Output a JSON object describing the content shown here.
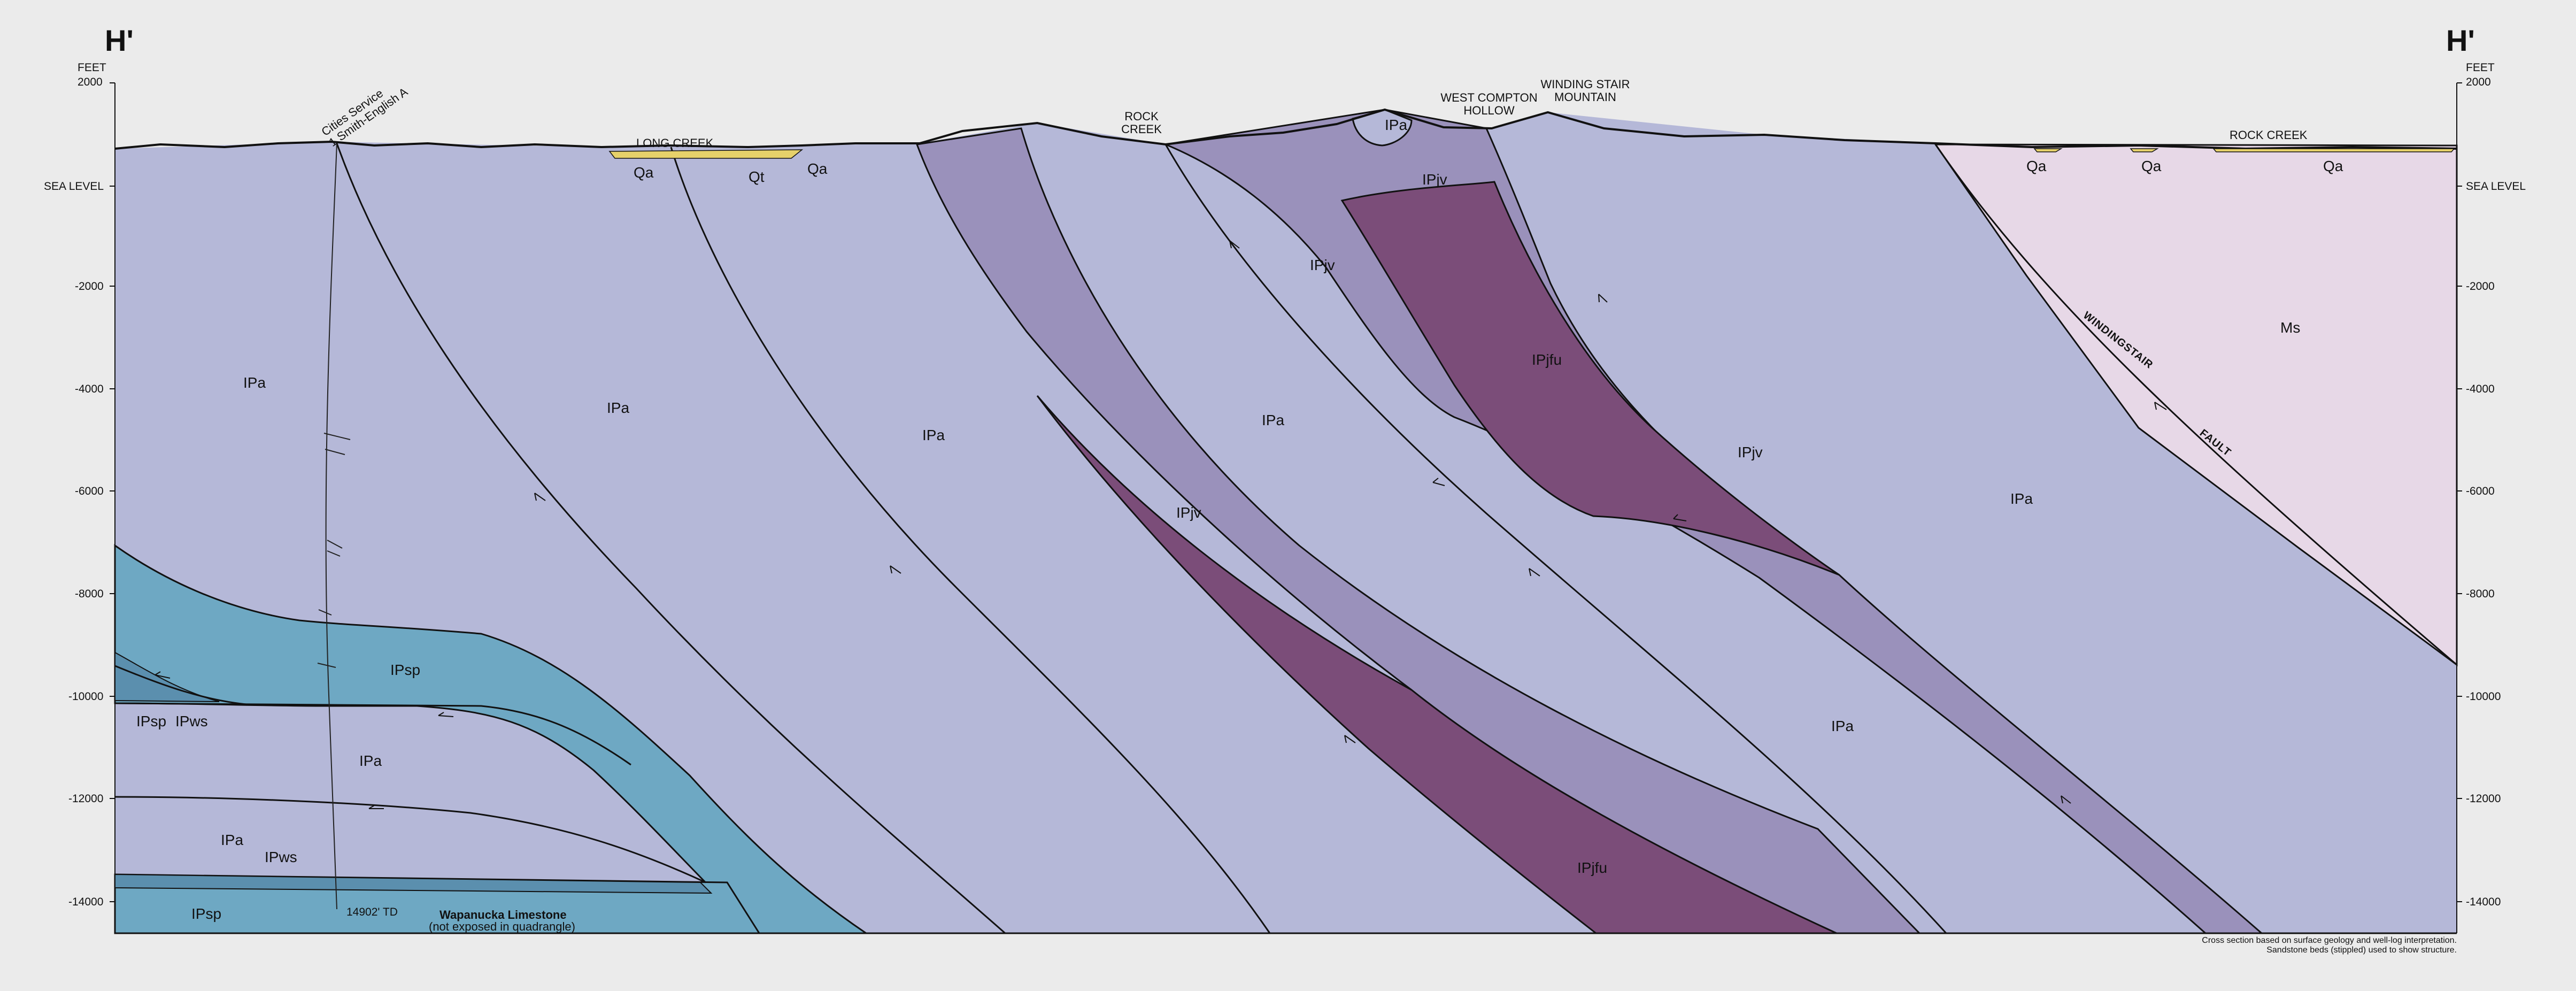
{
  "section": {
    "left_label": "H'",
    "right_label": "H'",
    "axis_unit": "FEET",
    "sea_level_label": "SEA LEVEL",
    "elevation_ticks": [
      "2000",
      "-2000",
      "-4000",
      "-6000",
      "-8000",
      "-10000",
      "-12000",
      "-14000"
    ]
  },
  "places": {
    "long_creek": "LONG CREEK",
    "rock_creek_center": "ROCK\nCREEK",
    "west_compton_hollow": "WEST COMPTON\nHOLLOW",
    "winding_stair_mountain": "WINDING STAIR\nMOUNTAIN",
    "rock_creek_right": "ROCK CREEK"
  },
  "well": {
    "name": "Cities Service\n1 Smith-English A",
    "td_label": "14902' TD"
  },
  "units": {
    "pa": "IPa",
    "pjv": "IPjv",
    "pjfu": "IPjfu",
    "psp": "IPsp",
    "pws": "IPws",
    "qa": "Qa",
    "qt": "Qt",
    "ms": "Ms"
  },
  "wapanucka": {
    "name": "Wapanucka Limestone",
    "note": "(not exposed in quadrangle)"
  },
  "faults": {
    "windingstair": "WINDINGSTAIR",
    "fault": "FAULT"
  },
  "footnote": [
    "Cross section based on surface geology and well-log interpretation.",
    "Sandstone beds (stippled) used to show structure."
  ],
  "colors": {
    "pa": "#b5b8d8",
    "pjv": "#9a91bb",
    "pjfu": "#7b4d79",
    "psp": "#6ea8c3",
    "pws": "#5b8fae",
    "ms": "#e7d8e7",
    "alluvium": "#e6d16a",
    "background": "#ebebeb"
  }
}
